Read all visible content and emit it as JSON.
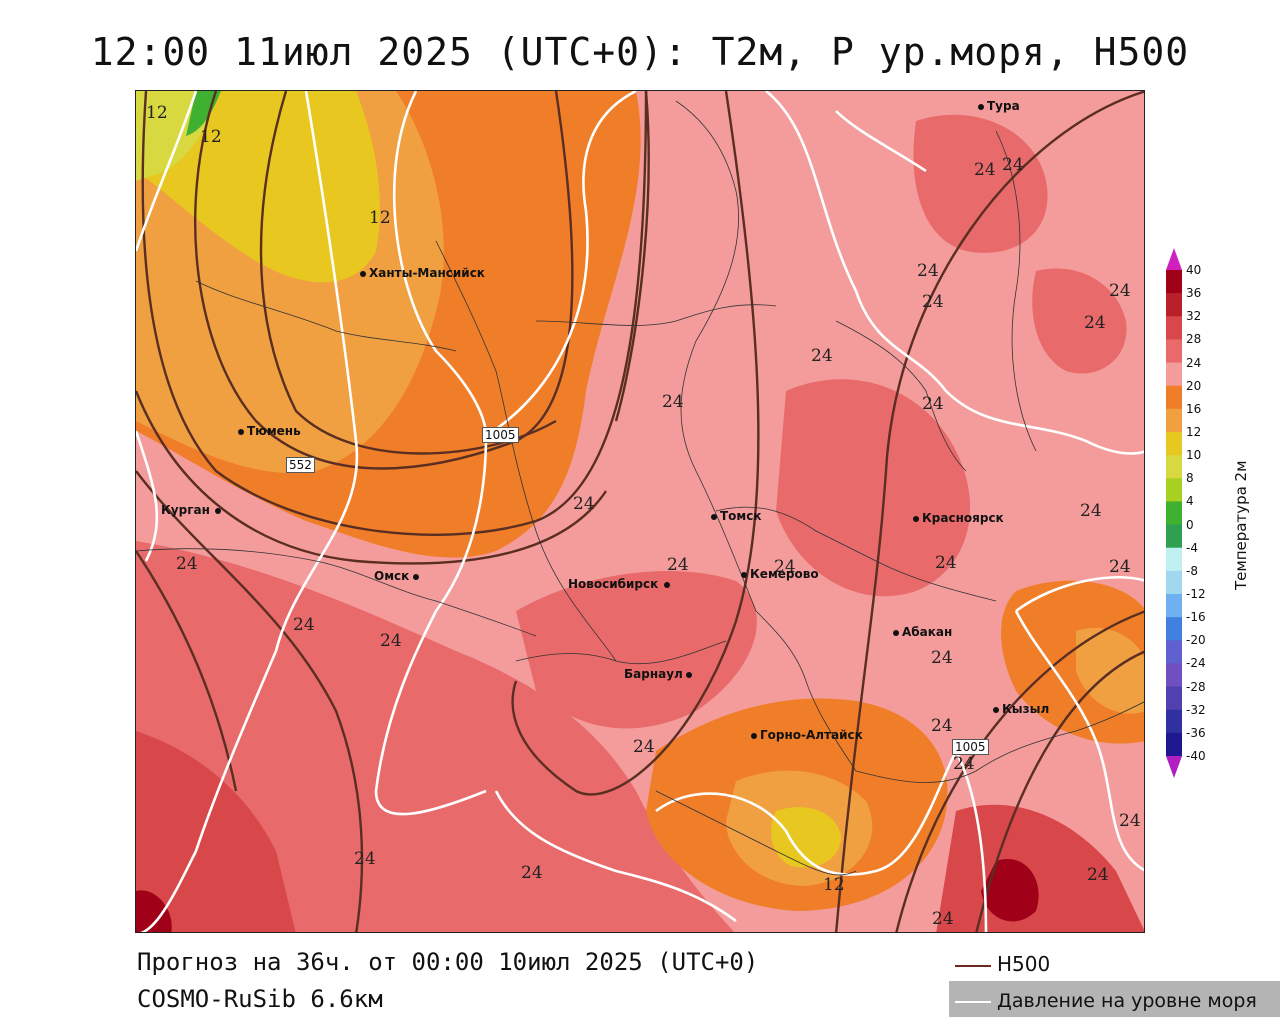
{
  "title": "12:00  11июл 2025 (UTC+0): T2м, P ур.моря, H500",
  "footer": {
    "forecast": "Прогноз на 36ч. от 00:00 10июл 2025 (UTC+0)",
    "model": "COSMO-RuSib 6.6км"
  },
  "legend": {
    "h500_label": "H500",
    "pressure_label": "Давление на уровне моря"
  },
  "colorbar": {
    "title": "Температура 2м",
    "labels": [
      "40",
      "36",
      "32",
      "28",
      "24",
      "20",
      "16",
      "12",
      "10",
      "8",
      "4",
      "0",
      "-4",
      "-8",
      "-12",
      "-16",
      "-20",
      "-24",
      "-28",
      "-32",
      "-36",
      "-40"
    ],
    "colors": [
      "#a00018",
      "#b8202a",
      "#d8474a",
      "#e86a6a",
      "#f49c9c",
      "#f07e28",
      "#f0a040",
      "#e8c820",
      "#d8d840",
      "#a8d020",
      "#40b030",
      "#30a050",
      "#c0f0f0",
      "#a0d8f0",
      "#70b0f0",
      "#4080e0",
      "#6060d0",
      "#7050c0",
      "#5040b0",
      "#3030a0",
      "#201890",
      "#d020c0"
    ]
  },
  "cities": [
    {
      "name": "Тура"
    },
    {
      "name": "Ханты-Мансийск"
    },
    {
      "name": "Тюмень"
    },
    {
      "name": "Курган"
    },
    {
      "name": "Омск"
    },
    {
      "name": "Томск"
    },
    {
      "name": "Новосибирск"
    },
    {
      "name": "Кемерово"
    },
    {
      "name": "Красноярск"
    },
    {
      "name": "Абакан"
    },
    {
      "name": "Барнаул"
    },
    {
      "name": "Горно-Алтайск"
    },
    {
      "name": "Кызыл"
    }
  ],
  "contour_labels": {
    "c12": "12",
    "c24": "24",
    "pressure": "1005",
    "h500": "552"
  }
}
